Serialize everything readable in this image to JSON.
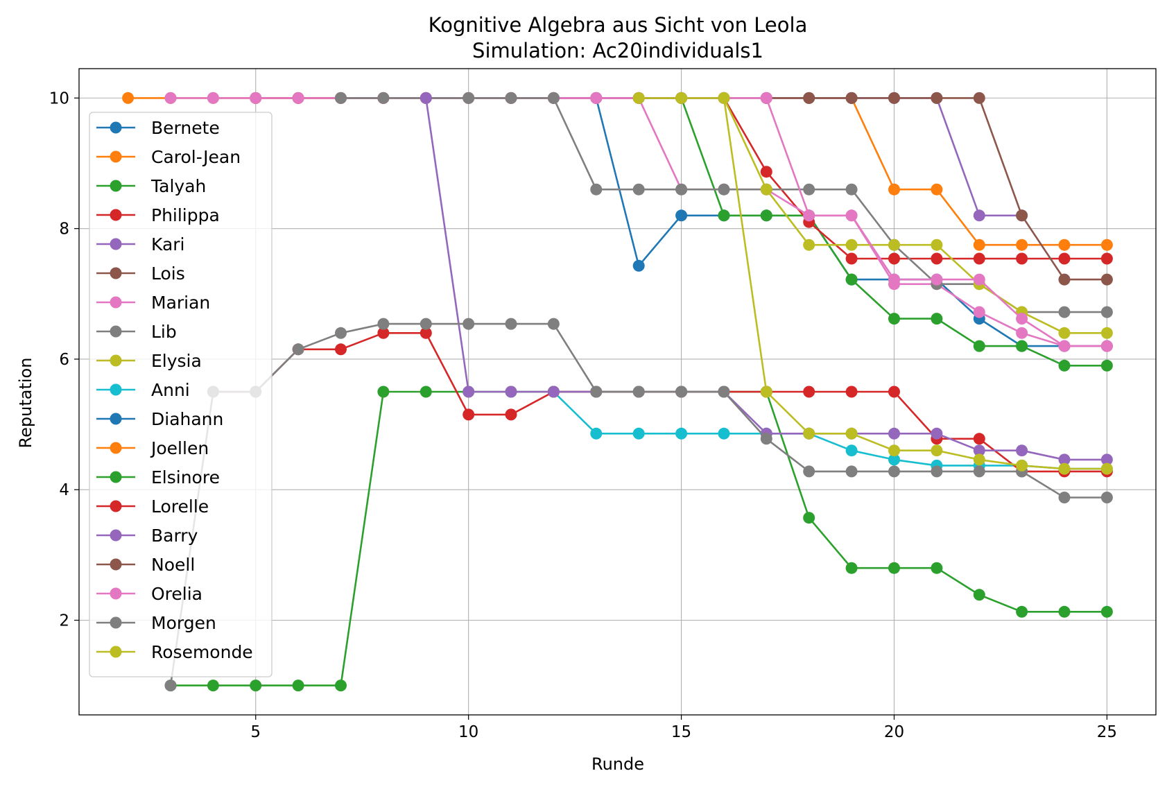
{
  "chart_data": {
    "type": "line",
    "title": "Kognitive Algebra aus Sicht von Leola",
    "subtitle": "Simulation: Ac20individuals1",
    "xlabel": "Runde",
    "ylabel": "Reputation",
    "xlim": [
      0.85,
      26.15
    ],
    "ylim": [
      0.55,
      10.45
    ],
    "xticks": [
      5,
      10,
      15,
      20,
      25
    ],
    "yticks": [
      2,
      4,
      6,
      8,
      10
    ],
    "grid": true,
    "legend_position": "upper-left",
    "series": [
      {
        "name": "Bernete",
        "color": "#1f77b4",
        "x": [
          13,
          14,
          15,
          16,
          17,
          18,
          19,
          20,
          21,
          22,
          23,
          24,
          25
        ],
        "y": [
          10,
          7.43,
          8.2,
          8.2,
          8.2,
          8.2,
          7.22,
          7.22,
          7.22,
          6.62,
          6.2,
          6.2,
          6.2
        ]
      },
      {
        "name": "Carol-Jean",
        "color": "#ff7f0e",
        "x": [
          2,
          3,
          4,
          5,
          6,
          7,
          8,
          9,
          10,
          11,
          12,
          13,
          14,
          15,
          16,
          17,
          18,
          19,
          20,
          21,
          22,
          23,
          24,
          25
        ],
        "y": [
          10,
          10,
          10,
          10,
          10,
          10,
          10,
          10,
          10,
          10,
          10,
          10,
          10,
          10,
          10,
          10,
          10,
          10,
          8.6,
          8.6,
          7.75,
          7.75,
          7.75,
          7.75
        ]
      },
      {
        "name": "Talyah",
        "color": "#2ca02c",
        "x": [
          14,
          15,
          16,
          17,
          18,
          19,
          20,
          21,
          22,
          23,
          24,
          25
        ],
        "y": [
          10,
          10,
          8.2,
          8.2,
          8.2,
          7.22,
          6.62,
          6.62,
          6.2,
          6.2,
          5.9,
          5.9
        ]
      },
      {
        "name": "Philippa",
        "color": "#d62728",
        "x": [
          5,
          6,
          7,
          8,
          9,
          10,
          11,
          12,
          13,
          14,
          15,
          16,
          17,
          18,
          19,
          20,
          21,
          22,
          23,
          24,
          25
        ],
        "y": [
          10,
          10,
          10,
          10,
          10,
          10,
          10,
          10,
          10,
          10,
          10,
          10,
          8.87,
          8.1,
          7.54,
          7.54,
          7.54,
          7.54,
          7.54,
          7.54,
          7.54
        ]
      },
      {
        "name": "Kari",
        "color": "#9467bd",
        "x": [
          12,
          13,
          14,
          15,
          16,
          17,
          18,
          19,
          20,
          21,
          22,
          23
        ],
        "y": [
          10,
          10,
          10,
          10,
          10,
          10,
          10,
          10,
          10,
          10,
          8.2,
          8.2
        ]
      },
      {
        "name": "Lois",
        "color": "#8c564b",
        "x": [
          17,
          18,
          19,
          20,
          21,
          22,
          23,
          24,
          25
        ],
        "y": [
          10,
          10,
          10,
          10,
          10,
          10,
          8.2,
          7.22,
          7.22
        ]
      },
      {
        "name": "Marian",
        "color": "#e377c2",
        "x": [
          3,
          4,
          5,
          6,
          7,
          8,
          9,
          10,
          11,
          12,
          13,
          14,
          15,
          16,
          17,
          18,
          19,
          20,
          21,
          22,
          23,
          24,
          25
        ],
        "y": [
          10,
          10,
          10,
          10,
          10,
          10,
          10,
          10,
          10,
          10,
          10,
          10,
          8.6,
          8.6,
          8.6,
          8.2,
          8.2,
          7.15,
          7.15,
          6.72,
          6.4,
          6.2,
          6.2
        ]
      },
      {
        "name": "Lib",
        "color": "#7f7f7f",
        "x": [
          7,
          8,
          9,
          10,
          11,
          12,
          13,
          14,
          15,
          16,
          17,
          18,
          19,
          20,
          21,
          22,
          23,
          24,
          25
        ],
        "y": [
          10,
          10,
          10,
          10,
          10,
          10,
          8.6,
          8.6,
          8.6,
          8.6,
          8.6,
          8.6,
          8.6,
          7.75,
          7.15,
          7.15,
          6.72,
          6.72,
          6.72
        ]
      },
      {
        "name": "Elysia",
        "color": "#bcbd22",
        "x": [
          14,
          15,
          16,
          17,
          18,
          19,
          20,
          21,
          22,
          23,
          24,
          25
        ],
        "y": [
          10,
          10,
          10,
          8.6,
          7.75,
          7.75,
          7.75,
          7.75,
          7.15,
          6.72,
          6.4,
          6.4
        ]
      },
      {
        "name": "Anni",
        "color": "#17becf",
        "x": [
          12,
          13,
          14,
          15,
          16,
          17,
          18,
          19,
          20,
          21,
          22,
          23,
          24,
          25
        ],
        "y": [
          5.5,
          4.86,
          4.86,
          4.86,
          4.86,
          4.86,
          4.86,
          4.6,
          4.46,
          4.37,
          4.37,
          4.37,
          4.32,
          4.32
        ]
      },
      {
        "name": "Diahann",
        "color": "#1f77b4",
        "x": [],
        "y": []
      },
      {
        "name": "Joellen",
        "color": "#ff7f0e",
        "x": [],
        "y": []
      },
      {
        "name": "Elsinore",
        "color": "#2ca02c",
        "x": [
          3,
          4,
          5,
          6,
          7,
          8,
          9,
          10,
          11,
          12,
          13,
          14,
          15,
          16,
          17,
          18,
          19,
          20,
          21,
          22,
          23,
          24,
          25
        ],
        "y": [
          1,
          1,
          1,
          1,
          1,
          5.5,
          5.5,
          5.5,
          5.5,
          5.5,
          5.5,
          5.5,
          5.5,
          5.5,
          5.5,
          3.57,
          2.8,
          2.8,
          2.8,
          2.39,
          2.13,
          2.13,
          2.13
        ]
      },
      {
        "name": "Lorelle",
        "color": "#d62728",
        "x": [
          4,
          5,
          6,
          7,
          8,
          9,
          10,
          11,
          12,
          13,
          14,
          15,
          16,
          17,
          18,
          19,
          20,
          21,
          22,
          23,
          24,
          25
        ],
        "y": [
          5.5,
          5.5,
          6.15,
          6.15,
          6.4,
          6.4,
          5.15,
          5.15,
          5.5,
          5.5,
          5.5,
          5.5,
          5.5,
          5.5,
          5.5,
          5.5,
          5.5,
          4.78,
          4.78,
          4.28,
          4.28,
          4.28
        ]
      },
      {
        "name": "Barry",
        "color": "#9467bd",
        "x": [
          9,
          10,
          11,
          12,
          13,
          14,
          15,
          16,
          17,
          18,
          19,
          20,
          21,
          22,
          23,
          24,
          25
        ],
        "y": [
          10,
          5.5,
          5.5,
          5.5,
          5.5,
          5.5,
          5.5,
          5.5,
          4.86,
          4.86,
          4.86,
          4.86,
          4.86,
          4.6,
          4.6,
          4.46,
          4.46
        ]
      },
      {
        "name": "Noell",
        "color": "#8c564b",
        "x": [],
        "y": []
      },
      {
        "name": "Orelia",
        "color": "#e377c2",
        "x": [
          16,
          17,
          18,
          19,
          20,
          21,
          22,
          23,
          24,
          25
        ],
        "y": [
          10,
          10,
          8.2,
          8.2,
          7.22,
          7.22,
          7.22,
          6.62,
          6.2,
          6.2
        ]
      },
      {
        "name": "Morgen",
        "color": "#7f7f7f",
        "x": [
          3,
          4,
          5,
          6,
          7,
          8,
          9,
          10,
          11,
          12,
          13,
          14,
          15,
          16,
          17,
          18,
          19,
          20,
          21,
          22,
          23,
          24,
          25
        ],
        "y": [
          1,
          5.5,
          5.5,
          6.15,
          6.4,
          6.54,
          6.54,
          6.54,
          6.54,
          6.54,
          5.5,
          5.5,
          5.5,
          5.5,
          4.78,
          4.28,
          4.28,
          4.28,
          4.28,
          4.28,
          4.28,
          3.88,
          3.88
        ]
      },
      {
        "name": "Rosemonde",
        "color": "#bcbd22",
        "x": [
          16,
          17,
          18,
          19,
          20,
          21,
          22,
          23,
          24,
          25
        ],
        "y": [
          10,
          5.5,
          4.86,
          4.86,
          4.6,
          4.6,
          4.46,
          4.37,
          4.32,
          4.32
        ]
      }
    ]
  }
}
